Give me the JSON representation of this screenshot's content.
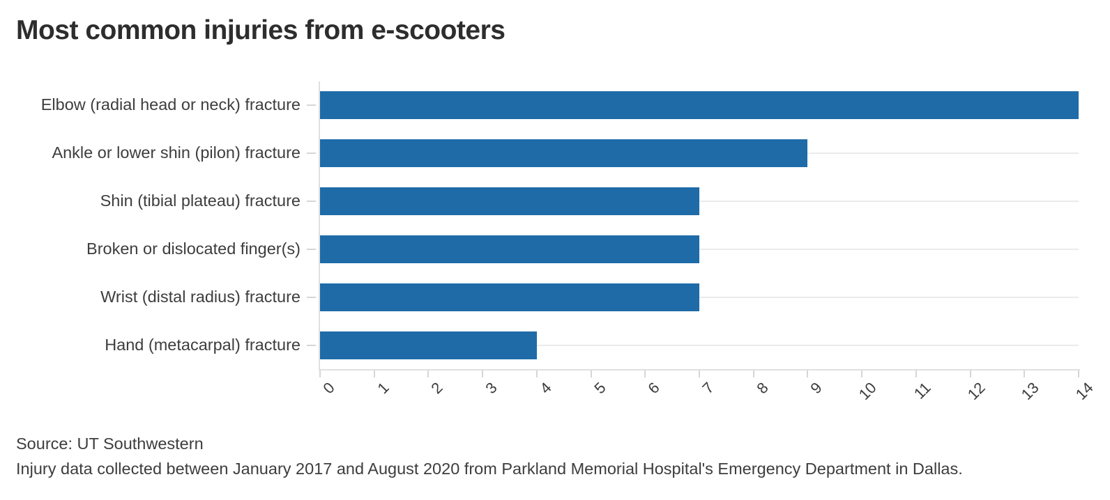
{
  "title": "Most common injuries from e-scooters",
  "footer": {
    "source": "Source: UT Southwestern",
    "note": "Injury data collected between January 2017 and August 2020 from Parkland Memorial Hospital's Emergency Department in Dallas."
  },
  "colors": {
    "bar": "#1e6ba8",
    "grid": "#ebebeb",
    "axis": "#e0e0e0",
    "tick": "#d6d6d6",
    "text": "#3d3d3d",
    "title": "#2d2d2d"
  },
  "chart_data": {
    "type": "bar",
    "orientation": "horizontal",
    "title": "Most common injuries from e-scooters",
    "categories": [
      "Elbow (radial head or neck) fracture",
      "Ankle or lower shin (pilon) fracture",
      "Shin (tibial plateau) fracture",
      "Broken or dislocated finger(s)",
      "Wrist (distal radius) fracture",
      "Hand (metacarpal) fracture"
    ],
    "values": [
      14,
      9,
      7,
      7,
      7,
      4
    ],
    "xlabel": "",
    "ylabel": "",
    "xlim": [
      0,
      14
    ],
    "xticks": [
      0,
      1,
      2,
      3,
      4,
      5,
      6,
      7,
      8,
      9,
      10,
      11,
      12,
      13,
      14
    ],
    "xtick_rotation": 45,
    "grid": "horizontal line across plot at each category, behind bars",
    "legend": "none",
    "bar_value_labels": "none"
  }
}
